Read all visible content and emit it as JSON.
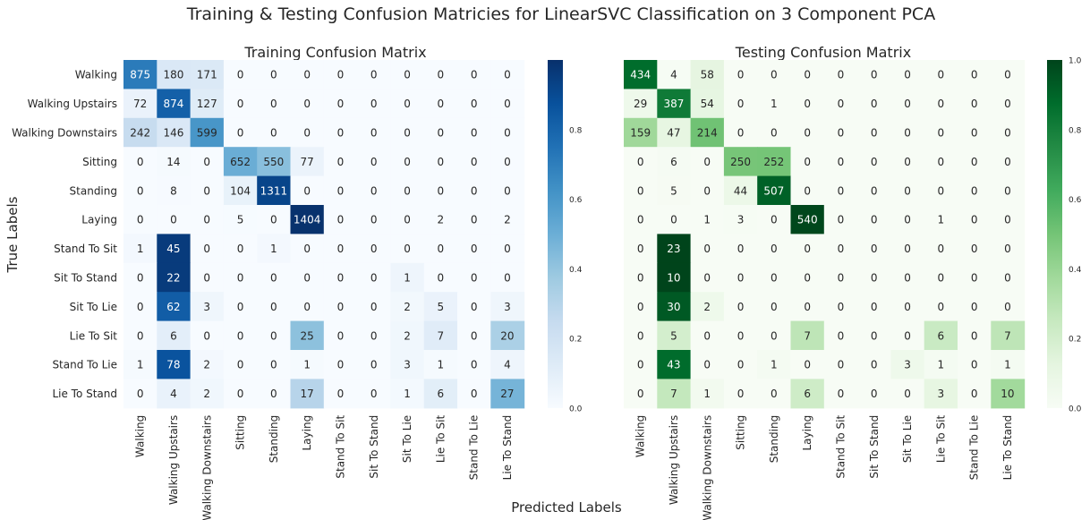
{
  "figure": {
    "title": "Training & Testing Confusion Matricies for LinearSVC Classification on 3 Component PCA",
    "ylabel": "True Labels",
    "xlabel": "Predicted Labels"
  },
  "chart_data": [
    {
      "type": "heatmap",
      "title": "Training Confusion Matrix",
      "colormap": "Blues",
      "colors": {
        "low": "#f7fbff",
        "high": "#08306b"
      },
      "row_labels": [
        "Walking",
        "Walking Upstairs",
        "Walking Downstairs",
        "Sitting",
        "Standing",
        "Laying",
        "Stand To Sit",
        "Sit To Stand",
        "Sit To Lie",
        "Lie To Sit",
        "Stand To Lie",
        "Lie To Stand"
      ],
      "col_labels": [
        "Walking",
        "Walking Upstairs",
        "Walking Downstairs",
        "Sitting",
        "Standing",
        "Laying",
        "Stand To Sit",
        "Sit To Stand",
        "Sit To Lie",
        "Lie To Sit",
        "Stand To Lie",
        "Lie To Stand"
      ],
      "values": [
        [
          875,
          180,
          171,
          0,
          0,
          0,
          0,
          0,
          0,
          0,
          0,
          0
        ],
        [
          72,
          874,
          127,
          0,
          0,
          0,
          0,
          0,
          0,
          0,
          0,
          0
        ],
        [
          242,
          146,
          599,
          0,
          0,
          0,
          0,
          0,
          0,
          0,
          0,
          0
        ],
        [
          0,
          14,
          0,
          652,
          550,
          77,
          0,
          0,
          0,
          0,
          0,
          0
        ],
        [
          0,
          8,
          0,
          104,
          1311,
          0,
          0,
          0,
          0,
          0,
          0,
          0
        ],
        [
          0,
          0,
          0,
          5,
          0,
          1404,
          0,
          0,
          0,
          2,
          0,
          2
        ],
        [
          1,
          45,
          0,
          0,
          1,
          0,
          0,
          0,
          0,
          0,
          0,
          0
        ],
        [
          0,
          22,
          0,
          0,
          0,
          0,
          0,
          0,
          1,
          0,
          0,
          0
        ],
        [
          0,
          62,
          3,
          0,
          0,
          0,
          0,
          0,
          2,
          5,
          0,
          3
        ],
        [
          0,
          6,
          0,
          0,
          0,
          25,
          0,
          0,
          2,
          7,
          0,
          20
        ],
        [
          1,
          78,
          2,
          0,
          0,
          1,
          0,
          0,
          3,
          1,
          0,
          4
        ],
        [
          0,
          4,
          2,
          0,
          0,
          17,
          0,
          0,
          1,
          6,
          0,
          27
        ]
      ],
      "colorbar": {
        "range": [
          0,
          1.0
        ],
        "ticks": [
          "0.0",
          "0.2",
          "0.4",
          "0.6",
          "0.8"
        ]
      }
    },
    {
      "type": "heatmap",
      "title": "Testing Confusion Matrix",
      "colormap": "Greens",
      "colors": {
        "low": "#f7fcf5",
        "high": "#00441b"
      },
      "row_labels": [
        "Walking",
        "Walking Upstairs",
        "Walking Downstairs",
        "Sitting",
        "Standing",
        "Laying",
        "Stand To Sit",
        "Sit To Stand",
        "Sit To Lie",
        "Lie To Sit",
        "Stand To Lie",
        "Lie To Stand"
      ],
      "col_labels": [
        "Walking",
        "Walking Upstairs",
        "Walking Downstairs",
        "Sitting",
        "Standing",
        "Laying",
        "Stand To Sit",
        "Sit To Stand",
        "Sit To Lie",
        "Lie To Sit",
        "Stand To Lie",
        "Lie To Stand"
      ],
      "values": [
        [
          434,
          4,
          58,
          0,
          0,
          0,
          0,
          0,
          0,
          0,
          0,
          0
        ],
        [
          29,
          387,
          54,
          0,
          1,
          0,
          0,
          0,
          0,
          0,
          0,
          0
        ],
        [
          159,
          47,
          214,
          0,
          0,
          0,
          0,
          0,
          0,
          0,
          0,
          0
        ],
        [
          0,
          6,
          0,
          250,
          252,
          0,
          0,
          0,
          0,
          0,
          0,
          0
        ],
        [
          0,
          5,
          0,
          44,
          507,
          0,
          0,
          0,
          0,
          0,
          0,
          0
        ],
        [
          0,
          0,
          1,
          3,
          0,
          540,
          0,
          0,
          0,
          1,
          0,
          0
        ],
        [
          0,
          23,
          0,
          0,
          0,
          0,
          0,
          0,
          0,
          0,
          0,
          0
        ],
        [
          0,
          10,
          0,
          0,
          0,
          0,
          0,
          0,
          0,
          0,
          0,
          0
        ],
        [
          0,
          30,
          2,
          0,
          0,
          0,
          0,
          0,
          0,
          0,
          0,
          0
        ],
        [
          0,
          5,
          0,
          0,
          0,
          7,
          0,
          0,
          0,
          6,
          0,
          7
        ],
        [
          0,
          43,
          0,
          0,
          1,
          0,
          0,
          0,
          3,
          1,
          0,
          1
        ],
        [
          0,
          7,
          1,
          0,
          0,
          6,
          0,
          0,
          0,
          3,
          0,
          10
        ]
      ],
      "colorbar": {
        "range": [
          0,
          1.0
        ],
        "ticks": [
          "0.0",
          "0.2",
          "0.4",
          "0.6",
          "0.8",
          "1.0"
        ]
      }
    }
  ]
}
